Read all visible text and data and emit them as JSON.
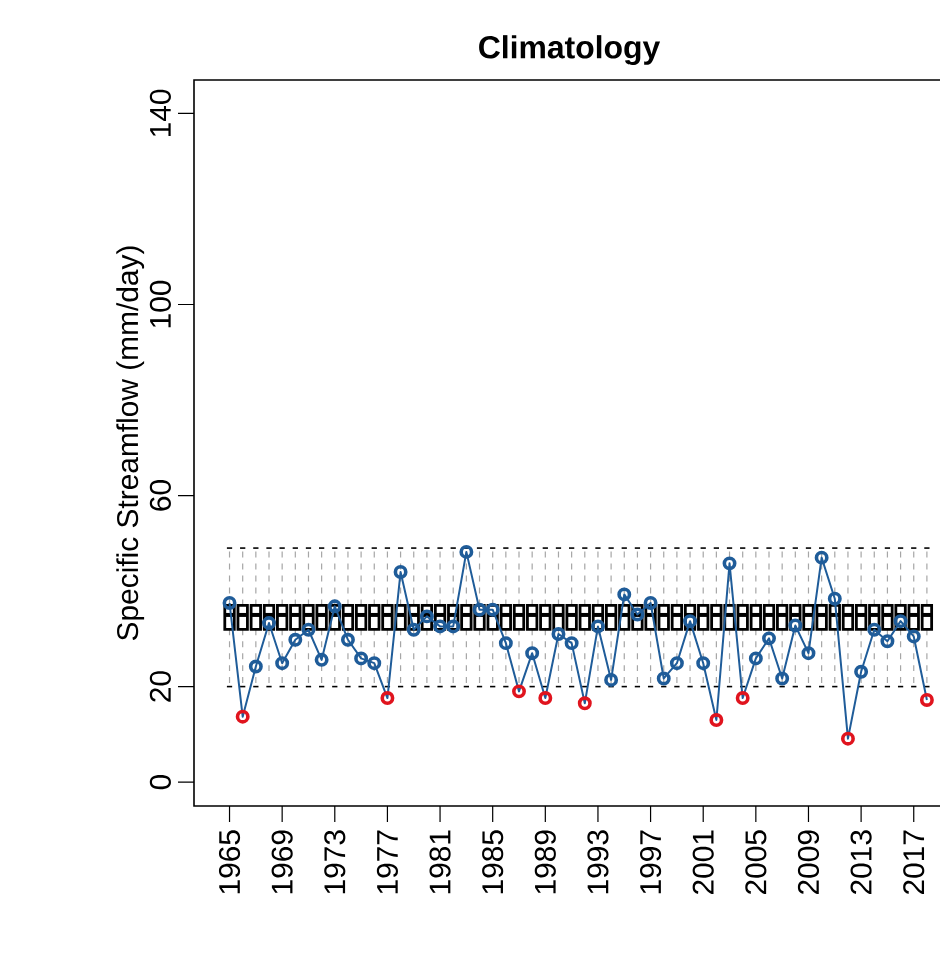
{
  "chart_data": {
    "type": "box",
    "title": "Climatology",
    "ylabel": "Specific Streamflow (mm/day)",
    "categories": [
      "1965",
      null,
      null,
      null,
      "1969",
      null,
      null,
      null,
      "1973",
      null,
      null,
      null,
      "1977",
      null,
      null,
      null,
      "1981",
      null,
      null,
      null,
      "1985",
      null,
      null,
      null,
      "1989",
      null,
      null,
      null,
      "1993",
      null,
      null,
      null,
      "1997",
      null,
      null,
      null,
      "2001",
      null,
      null,
      null,
      "2005",
      null,
      null,
      null,
      "2009",
      null,
      null,
      null,
      "2013",
      null,
      null,
      null,
      "2017",
      null
    ],
    "boxes": [
      {
        "low": 20,
        "q1": 32,
        "median": 35,
        "q3": 37,
        "high": 49
      },
      {
        "low": 20,
        "q1": 32,
        "median": 35,
        "q3": 37,
        "high": 49
      },
      {
        "low": 20,
        "q1": 32,
        "median": 35,
        "q3": 37,
        "high": 49
      },
      {
        "low": 20,
        "q1": 32,
        "median": 35,
        "q3": 37,
        "high": 49
      },
      {
        "low": 20,
        "q1": 32,
        "median": 35,
        "q3": 37,
        "high": 49
      },
      {
        "low": 20,
        "q1": 32,
        "median": 35,
        "q3": 37,
        "high": 49
      },
      {
        "low": 20,
        "q1": 32,
        "median": 35,
        "q3": 37,
        "high": 49
      },
      {
        "low": 20,
        "q1": 32,
        "median": 35,
        "q3": 37,
        "high": 49
      },
      {
        "low": 20,
        "q1": 32,
        "median": 35,
        "q3": 37,
        "high": 49
      },
      {
        "low": 20,
        "q1": 32,
        "median": 35,
        "q3": 37,
        "high": 49
      },
      {
        "low": 20,
        "q1": 32,
        "median": 35,
        "q3": 37,
        "high": 49
      },
      {
        "low": 20,
        "q1": 32,
        "median": 35,
        "q3": 37,
        "high": 49
      },
      {
        "low": 20,
        "q1": 32,
        "median": 35,
        "q3": 37,
        "high": 49
      },
      {
        "low": 20,
        "q1": 32,
        "median": 35,
        "q3": 37,
        "high": 49
      },
      {
        "low": 20,
        "q1": 32,
        "median": 35,
        "q3": 37,
        "high": 49
      },
      {
        "low": 20,
        "q1": 32,
        "median": 35,
        "q3": 37,
        "high": 49
      },
      {
        "low": 20,
        "q1": 32,
        "median": 35,
        "q3": 37,
        "high": 49
      },
      {
        "low": 20,
        "q1": 32,
        "median": 35,
        "q3": 37,
        "high": 49
      },
      {
        "low": 20,
        "q1": 32,
        "median": 35,
        "q3": 37,
        "high": 49
      },
      {
        "low": 20,
        "q1": 32,
        "median": 35,
        "q3": 37,
        "high": 49
      },
      {
        "low": 20,
        "q1": 32,
        "median": 35,
        "q3": 37,
        "high": 49
      },
      {
        "low": 20,
        "q1": 32,
        "median": 35,
        "q3": 37,
        "high": 49
      },
      {
        "low": 20,
        "q1": 32,
        "median": 35,
        "q3": 37,
        "high": 49
      },
      {
        "low": 20,
        "q1": 32,
        "median": 35,
        "q3": 37,
        "high": 49
      },
      {
        "low": 20,
        "q1": 32,
        "median": 35,
        "q3": 37,
        "high": 49
      },
      {
        "low": 20,
        "q1": 32,
        "median": 35,
        "q3": 37,
        "high": 49
      },
      {
        "low": 20,
        "q1": 32,
        "median": 35,
        "q3": 37,
        "high": 49
      },
      {
        "low": 20,
        "q1": 32,
        "median": 35,
        "q3": 37,
        "high": 49
      },
      {
        "low": 20,
        "q1": 32,
        "median": 35,
        "q3": 37,
        "high": 49
      },
      {
        "low": 20,
        "q1": 32,
        "median": 35,
        "q3": 37,
        "high": 49
      },
      {
        "low": 20,
        "q1": 32,
        "median": 35,
        "q3": 37,
        "high": 49
      },
      {
        "low": 20,
        "q1": 32,
        "median": 35,
        "q3": 37,
        "high": 49
      },
      {
        "low": 20,
        "q1": 32,
        "median": 35,
        "q3": 37,
        "high": 49
      },
      {
        "low": 20,
        "q1": 32,
        "median": 35,
        "q3": 37,
        "high": 49
      },
      {
        "low": 20,
        "q1": 32,
        "median": 35,
        "q3": 37,
        "high": 49
      },
      {
        "low": 20,
        "q1": 32,
        "median": 35,
        "q3": 37,
        "high": 49
      },
      {
        "low": 20,
        "q1": 32,
        "median": 35,
        "q3": 37,
        "high": 49
      },
      {
        "low": 20,
        "q1": 32,
        "median": 35,
        "q3": 37,
        "high": 49
      },
      {
        "low": 20,
        "q1": 32,
        "median": 35,
        "q3": 37,
        "high": 49
      },
      {
        "low": 20,
        "q1": 32,
        "median": 35,
        "q3": 37,
        "high": 49
      },
      {
        "low": 20,
        "q1": 32,
        "median": 35,
        "q3": 37,
        "high": 49
      },
      {
        "low": 20,
        "q1": 32,
        "median": 35,
        "q3": 37,
        "high": 49
      },
      {
        "low": 20,
        "q1": 32,
        "median": 35,
        "q3": 37,
        "high": 49
      },
      {
        "low": 20,
        "q1": 32,
        "median": 35,
        "q3": 37,
        "high": 49
      },
      {
        "low": 20,
        "q1": 32,
        "median": 35,
        "q3": 37,
        "high": 49
      },
      {
        "low": 20,
        "q1": 32,
        "median": 35,
        "q3": 37,
        "high": 49
      },
      {
        "low": 20,
        "q1": 32,
        "median": 35,
        "q3": 37,
        "high": 49
      },
      {
        "low": 20,
        "q1": 32,
        "median": 35,
        "q3": 37,
        "high": 49
      },
      {
        "low": 20,
        "q1": 32,
        "median": 35,
        "q3": 37,
        "high": 49
      },
      {
        "low": 20,
        "q1": 32,
        "median": 35,
        "q3": 37,
        "high": 49
      },
      {
        "low": 20,
        "q1": 32,
        "median": 35,
        "q3": 37,
        "high": 49
      },
      {
        "low": 20,
        "q1": 32,
        "median": 35,
        "q3": 37,
        "high": 49
      },
      {
        "low": 20,
        "q1": 32,
        "median": 35,
        "q3": 37,
        "high": 49
      },
      {
        "low": 20,
        "q1": 32,
        "median": 35,
        "q3": 37,
        "high": 49
      }
    ],
    "series": [
      {
        "type": "line",
        "color": "#1f5c99",
        "values": [
          37.5,
          13.7,
          24.2,
          33.3,
          24.9,
          29.8,
          31.9,
          25.6,
          36.8,
          29.8,
          25.9,
          24.9,
          17.6,
          44.0,
          31.9,
          34.7,
          32.6,
          32.6,
          48.2,
          36.1,
          36.1,
          29.1,
          19.0,
          27.0,
          17.6,
          31.0,
          29.1,
          16.5,
          32.6,
          21.4,
          39.3,
          35.1,
          37.5,
          21.7,
          24.9,
          33.7,
          24.9,
          13.0,
          45.8,
          17.6,
          25.9,
          30.1,
          21.7,
          32.8,
          27.0,
          47.0,
          38.4,
          9.1,
          23.1,
          31.9,
          29.5,
          33.7,
          30.5,
          17.2
        ],
        "colors": [
          "#1f5c99",
          "#e0141e",
          "#1f5c99",
          "#1f5c99",
          "#1f5c99",
          "#1f5c99",
          "#1f5c99",
          "#1f5c99",
          "#1f5c99",
          "#1f5c99",
          "#1f5c99",
          "#1f5c99",
          "#e0141e",
          "#1f5c99",
          "#1f5c99",
          "#1f5c99",
          "#1f5c99",
          "#1f5c99",
          "#1f5c99",
          "#1f5c99",
          "#1f5c99",
          "#1f5c99",
          "#e0141e",
          "#1f5c99",
          "#e0141e",
          "#1f5c99",
          "#1f5c99",
          "#e0141e",
          "#1f5c99",
          "#1f5c99",
          "#1f5c99",
          "#1f5c99",
          "#1f5c99",
          "#1f5c99",
          "#1f5c99",
          "#1f5c99",
          "#1f5c99",
          "#e0141e",
          "#1f5c99",
          "#e0141e",
          "#1f5c99",
          "#1f5c99",
          "#1f5c99",
          "#1f5c99",
          "#1f5c99",
          "#1f5c99",
          "#1f5c99",
          "#e0141e",
          "#1f5c99",
          "#1f5c99",
          "#1f5c99",
          "#1f5c99",
          "#1f5c99",
          "#e0141e"
        ]
      }
    ],
    "ylim": [
      -5,
      147
    ],
    "yticks": [
      0,
      20,
      60,
      100,
      140
    ],
    "marker": "circle"
  }
}
